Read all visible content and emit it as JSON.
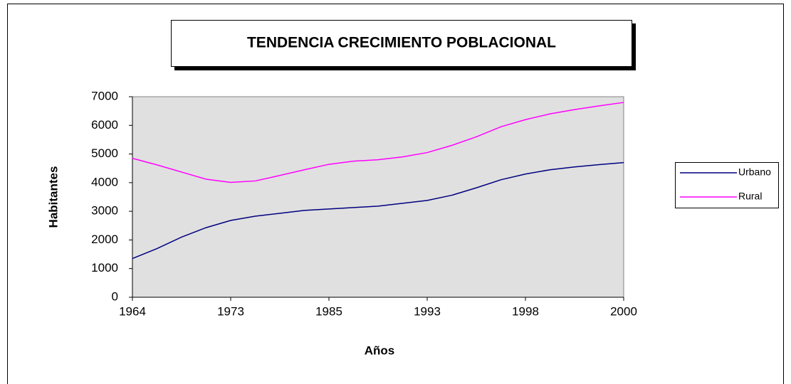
{
  "chart_data": {
    "type": "line",
    "title": "TENDENCIA CRECIMIENTO POBLACIONAL",
    "x_label": "Años",
    "y_label": "Habitantes",
    "categories": [
      "1964",
      null,
      null,
      null,
      "1973",
      null,
      null,
      null,
      "1985",
      null,
      null,
      null,
      "1993",
      null,
      null,
      null,
      "1998",
      null,
      null,
      null,
      "2000"
    ],
    "series": [
      {
        "name": "Urbano",
        "color": "#000080",
        "values": [
          1350,
          1700,
          2100,
          2430,
          2680,
          2830,
          2930,
          3030,
          3080,
          3130,
          3180,
          3280,
          3380,
          3560,
          3820,
          4100,
          4300,
          4450,
          4550,
          4630,
          4700
        ]
      },
      {
        "name": "Rural",
        "color": "#ff00ff",
        "values": [
          4850,
          4620,
          4370,
          4120,
          4010,
          4060,
          4250,
          4450,
          4640,
          4750,
          4800,
          4900,
          5050,
          5300,
          5600,
          5950,
          6200,
          6400,
          6550,
          6680,
          6800
        ]
      }
    ],
    "ylim": [
      0,
      7000
    ],
    "yticks": [
      0,
      1000,
      2000,
      3000,
      4000,
      5000,
      6000,
      7000
    ],
    "plot_background": "#e0e0e0",
    "grid": false,
    "legend": "right"
  }
}
